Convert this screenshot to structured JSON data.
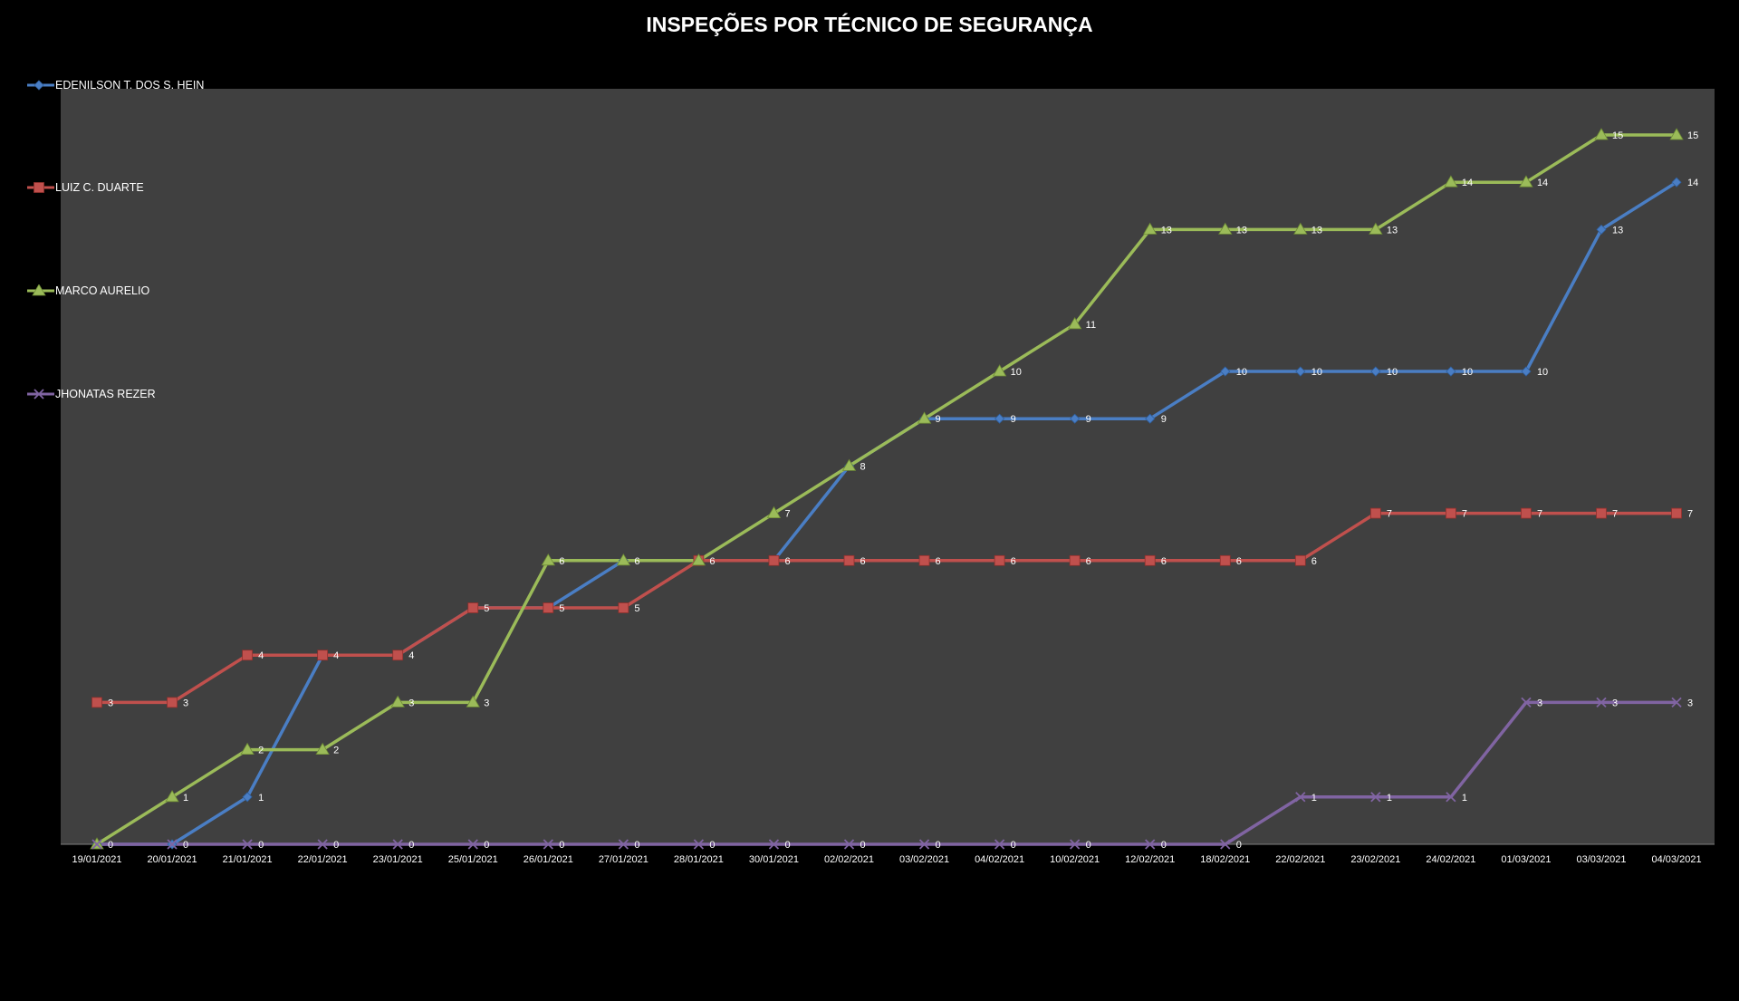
{
  "chart_data": {
    "type": "line",
    "title": "INSPEÇÕES POR TÉCNICO DE SEGURANÇA",
    "xlabel": "",
    "ylabel": "",
    "ylim": [
      0,
      16
    ],
    "grid": false,
    "legend_position": "left",
    "data_labels": true,
    "plot_background": "#404040",
    "page_background": "#000000",
    "categories": [
      "19/01/2021",
      "20/01/2021",
      "21/01/2021",
      "22/01/2021",
      "23/01/2021",
      "25/01/2021",
      "26/01/2021",
      "27/01/2021",
      "28/01/2021",
      "30/01/2021",
      "02/02/2021",
      "03/02/2021",
      "04/02/2021",
      "10/02/2021",
      "12/02/2021",
      "18/02/2021",
      "22/02/2021",
      "23/02/2021",
      "24/02/2021",
      "01/03/2021",
      "03/03/2021",
      "04/03/2021"
    ],
    "series": [
      {
        "name": "EDENILSON T. DOS S. HEIN",
        "color": "#4a7ec4",
        "marker": "diamond",
        "values": [
          0,
          0,
          1,
          4,
          4,
          5,
          5,
          6,
          6,
          6,
          8,
          9,
          9,
          9,
          9,
          10,
          10,
          10,
          10,
          10,
          13,
          14
        ],
        "labels": [
          null,
          0,
          1,
          null,
          null,
          null,
          null,
          null,
          null,
          null,
          8,
          null,
          9,
          9,
          9,
          10,
          10,
          10,
          10,
          10,
          13,
          14
        ]
      },
      {
        "name": "LUIZ C. DUARTE",
        "color": "#c0504d",
        "marker": "square",
        "values": [
          3,
          3,
          4,
          4,
          4,
          5,
          5,
          5,
          6,
          6,
          6,
          6,
          6,
          6,
          6,
          6,
          6,
          7,
          7,
          7,
          7,
          7
        ],
        "labels": [
          3,
          3,
          4,
          4,
          4,
          5,
          5,
          5,
          6,
          6,
          6,
          6,
          6,
          6,
          6,
          6,
          6,
          7,
          7,
          7,
          7,
          7
        ]
      },
      {
        "name": "MARCO AURELIO",
        "color": "#9bbb59",
        "marker": "triangle",
        "values": [
          0,
          1,
          2,
          2,
          3,
          3,
          6,
          6,
          6,
          7,
          8,
          9,
          10,
          11,
          13,
          13,
          13,
          13,
          14,
          14,
          15,
          15
        ],
        "labels": [
          0,
          1,
          2,
          2,
          3,
          3,
          6,
          6,
          null,
          7,
          null,
          9,
          10,
          11,
          13,
          13,
          13,
          13,
          14,
          14,
          15,
          15
        ]
      },
      {
        "name": "JHONATAS REZER",
        "color": "#8064a2",
        "marker": "x",
        "values": [
          0,
          0,
          0,
          0,
          0,
          0,
          0,
          0,
          0,
          0,
          0,
          0,
          0,
          0,
          0,
          0,
          1,
          1,
          1,
          3,
          3,
          3
        ],
        "labels": [
          null,
          null,
          0,
          0,
          0,
          0,
          0,
          0,
          0,
          0,
          0,
          0,
          0,
          0,
          0,
          0,
          1,
          1,
          1,
          3,
          3,
          3
        ]
      }
    ]
  }
}
